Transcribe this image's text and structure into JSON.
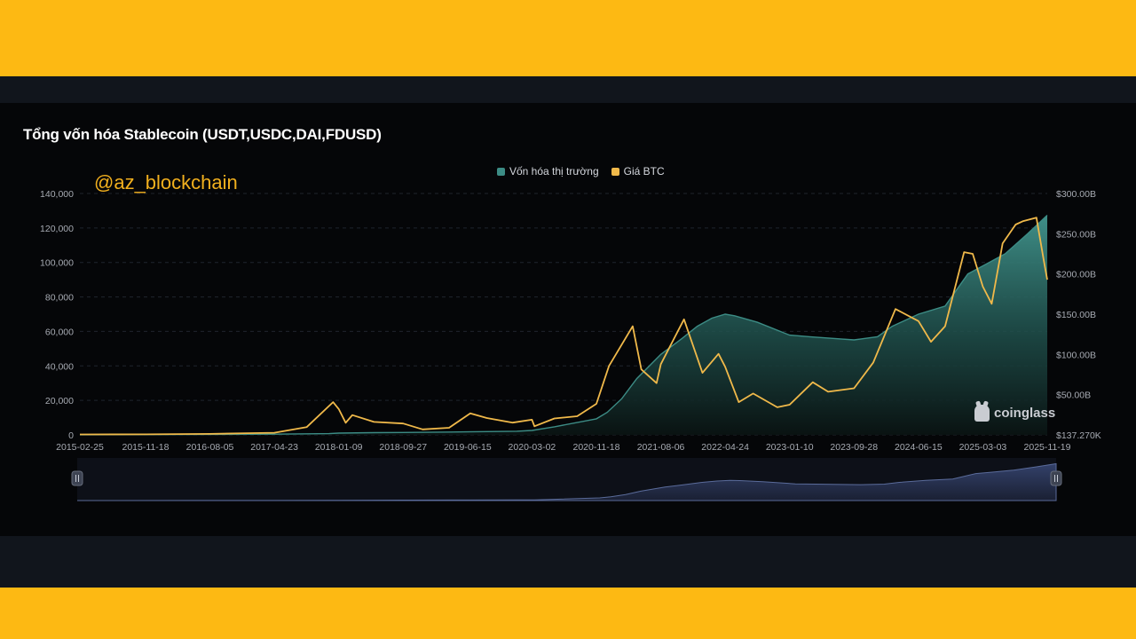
{
  "page": {
    "title": "Tổng vốn hóa Stablecoin (USDT,USDC,DAI,FDUSD)",
    "watermark": "@az_blockchain",
    "brand": "coinglass",
    "colors": {
      "frame": "#fdb913",
      "panel": "#050608",
      "band": "#11151c",
      "marketcap": "#3c8c85",
      "btc": "#f0b94a"
    }
  },
  "chart_data": {
    "type": "area",
    "title": "Tổng vốn hóa Stablecoin (USDT,USDC,DAI,FDUSD)",
    "legend_position": "top-center",
    "grid": true,
    "x_ticks": [
      "2015-02-25",
      "2015-11-18",
      "2016-08-05",
      "2017-04-23",
      "2018-01-09",
      "2018-09-27",
      "2019-06-15",
      "2020-03-02",
      "2020-11-18",
      "2021-08-06",
      "2022-04-24",
      "2023-01-10",
      "2023-09-28",
      "2024-06-15",
      "2025-03-03",
      "2025-11-19"
    ],
    "x_range": [
      "2015-02-25",
      "2025-11-19"
    ],
    "y_left": {
      "ticks": [
        "0",
        "20,000",
        "40,000",
        "60,000",
        "80,000",
        "100,000",
        "120,000",
        "140,000"
      ],
      "range": [
        0,
        140000
      ]
    },
    "y_right": {
      "ticks": [
        "$137.270K",
        "$50.00B",
        "$100.00B",
        "$150.00B",
        "$200.00B",
        "$250.00B",
        "$300.00B"
      ],
      "range": [
        0,
        300
      ]
    },
    "series": [
      {
        "name": "Vốn hóa thị trường",
        "axis": "right",
        "unit": "B USD",
        "color": "#3c8c85",
        "points": [
          [
            "2015-02-25",
            0.1
          ],
          [
            "2016-06-01",
            0.5
          ],
          [
            "2017-04-23",
            0.9
          ],
          [
            "2017-12-01",
            1.5
          ],
          [
            "2018-01-09",
            2.2
          ],
          [
            "2018-06-01",
            2.8
          ],
          [
            "2018-09-27",
            3.0
          ],
          [
            "2019-06-15",
            3.8
          ],
          [
            "2020-01-01",
            4.5
          ],
          [
            "2020-03-02",
            5.5
          ],
          [
            "2020-06-01",
            10
          ],
          [
            "2020-11-18",
            20
          ],
          [
            "2021-01-01",
            28
          ],
          [
            "2021-03-01",
            45
          ],
          [
            "2021-05-01",
            70
          ],
          [
            "2021-08-06",
            100
          ],
          [
            "2021-11-01",
            120
          ],
          [
            "2022-01-01",
            135
          ],
          [
            "2022-03-01",
            145
          ],
          [
            "2022-04-24",
            150
          ],
          [
            "2022-06-01",
            148
          ],
          [
            "2022-09-01",
            140
          ],
          [
            "2023-01-10",
            124
          ],
          [
            "2023-04-01",
            122
          ],
          [
            "2023-09-28",
            118
          ],
          [
            "2024-01-01",
            122
          ],
          [
            "2024-03-01",
            135
          ],
          [
            "2024-06-15",
            150
          ],
          [
            "2024-10-01",
            160
          ],
          [
            "2025-01-01",
            200
          ],
          [
            "2025-03-03",
            210
          ],
          [
            "2025-06-01",
            225
          ],
          [
            "2025-09-01",
            250
          ],
          [
            "2025-11-19",
            273
          ]
        ]
      },
      {
        "name": "Giá BTC",
        "axis": "left",
        "unit": "USD",
        "color": "#f0b94a",
        "points": [
          [
            "2015-02-25",
            250
          ],
          [
            "2015-11-18",
            330
          ],
          [
            "2016-08-05",
            590
          ],
          [
            "2017-01-01",
            1000
          ],
          [
            "2017-04-23",
            1250
          ],
          [
            "2017-09-01",
            4500
          ],
          [
            "2017-12-17",
            19000
          ],
          [
            "2018-01-09",
            15000
          ],
          [
            "2018-02-06",
            7000
          ],
          [
            "2018-03-05",
            11500
          ],
          [
            "2018-06-01",
            7500
          ],
          [
            "2018-09-27",
            6600
          ],
          [
            "2018-12-15",
            3200
          ],
          [
            "2019-04-01",
            4100
          ],
          [
            "2019-06-26",
            12500
          ],
          [
            "2019-09-01",
            9800
          ],
          [
            "2019-12-15",
            7100
          ],
          [
            "2020-03-02",
            8800
          ],
          [
            "2020-03-12",
            5000
          ],
          [
            "2020-06-01",
            9500
          ],
          [
            "2020-09-01",
            10800
          ],
          [
            "2020-11-18",
            18000
          ],
          [
            "2021-01-08",
            40000
          ],
          [
            "2021-04-14",
            63000
          ],
          [
            "2021-05-19",
            38000
          ],
          [
            "2021-07-20",
            30000
          ],
          [
            "2021-08-06",
            41000
          ],
          [
            "2021-11-08",
            67000
          ],
          [
            "2022-01-22",
            36000
          ],
          [
            "2022-03-28",
            47000
          ],
          [
            "2022-04-24",
            39500
          ],
          [
            "2022-06-18",
            19000
          ],
          [
            "2022-08-15",
            24000
          ],
          [
            "2022-11-21",
            16000
          ],
          [
            "2023-01-10",
            17500
          ],
          [
            "2023-04-14",
            30500
          ],
          [
            "2023-06-15",
            25000
          ],
          [
            "2023-09-28",
            27000
          ],
          [
            "2023-12-15",
            42000
          ],
          [
            "2024-03-14",
            73000
          ],
          [
            "2024-06-15",
            66000
          ],
          [
            "2024-08-05",
            54000
          ],
          [
            "2024-10-01",
            63000
          ],
          [
            "2024-12-17",
            106000
          ],
          [
            "2025-01-21",
            105000
          ],
          [
            "2025-03-03",
            86000
          ],
          [
            "2025-04-08",
            76000
          ],
          [
            "2025-05-22",
            111000
          ],
          [
            "2025-07-14",
            122000
          ],
          [
            "2025-08-14",
            124000
          ],
          [
            "2025-10-06",
            126000
          ],
          [
            "2025-11-04",
            102000
          ],
          [
            "2025-11-19",
            90000
          ]
        ]
      }
    ]
  }
}
